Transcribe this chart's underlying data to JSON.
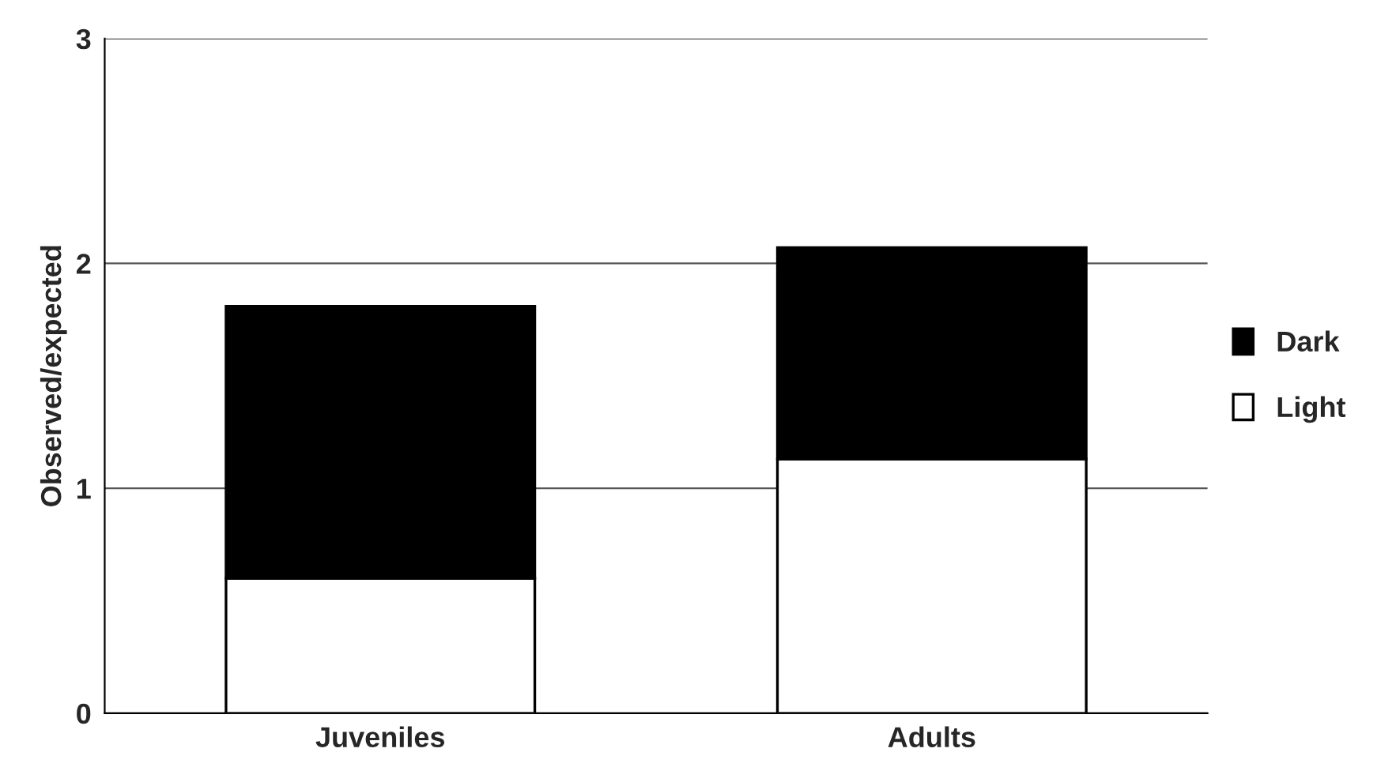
{
  "chart_data": {
    "type": "bar",
    "ylabel": "Observed/expected",
    "categories": [
      "Juveniles",
      "Adults"
    ],
    "stacked": true,
    "series": [
      {
        "name": "Light",
        "color": "#ffffff",
        "values": [
          0.6,
          1.13
        ]
      },
      {
        "name": "Dark",
        "color": "#000000",
        "values": [
          1.21,
          0.94
        ]
      }
    ],
    "ylim": [
      0,
      3
    ],
    "yticks": [
      0,
      1,
      2,
      3
    ],
    "grid": "y",
    "legend": "right"
  }
}
